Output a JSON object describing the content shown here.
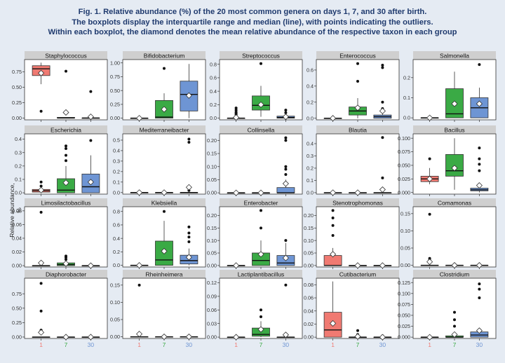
{
  "caption": {
    "line1": "Fig. 1. Relative abundance (%) of the 20 most common genera on days 1, 7, and 30 after birth.",
    "line2": "The boxplots display the interquartile range and median (line), with points indicating the outliers.",
    "line3": "Within each boxplot, the diamond denotes the mean relative abundance of the respective taxon in each group"
  },
  "colors": {
    "g1": "#f07a72",
    "g7": "#3aaa45",
    "g30": "#6e95d4",
    "strip": "#cfcfcf"
  },
  "chart_data": {
    "type": "boxplot",
    "ylabel": "Relative abundance, %",
    "groups": [
      "1",
      "7",
      "30"
    ],
    "panels": [
      {
        "title": "Staphylococcus",
        "ticks": [
          0.0,
          0.25,
          0.5,
          0.75
        ],
        "ylim": [
          -0.03,
          0.95
        ],
        "boxes": [
          {
            "q1": 0.69,
            "med": 0.8,
            "q3": 0.85,
            "lo": 0.55,
            "hi": 0.9,
            "mean": 0.73,
            "out": [
              0.11
            ]
          },
          {
            "q1": 0.0,
            "med": 0.0,
            "q3": 0.01,
            "lo": 0.0,
            "hi": 0.01,
            "mean": 0.09,
            "out": [
              0.76,
              0.09
            ]
          },
          {
            "q1": 0.0,
            "med": 0.0,
            "q3": 0.0,
            "lo": 0.0,
            "hi": 0.0,
            "mean": 0.02,
            "out": [
              0.43
            ]
          }
        ]
      },
      {
        "title": "Bifidobacterium",
        "ticks": [
          0.0,
          0.25,
          0.5,
          0.75,
          1.0
        ],
        "ylim": [
          -0.03,
          1.06
        ],
        "boxes": [
          {
            "q1": 0.0,
            "med": 0.0,
            "q3": 0.0,
            "lo": 0.0,
            "hi": 0.0,
            "mean": 0.0,
            "out": []
          },
          {
            "q1": 0.0,
            "med": 0.02,
            "q3": 0.32,
            "lo": 0.0,
            "hi": 0.45,
            "mean": 0.16,
            "out": [
              0.9
            ]
          },
          {
            "q1": 0.13,
            "med": 0.43,
            "q3": 0.67,
            "lo": 0.0,
            "hi": 0.98,
            "mean": 0.41,
            "out": []
          }
        ]
      },
      {
        "title": "Streptococcus",
        "ticks": [
          0.0,
          0.2,
          0.4,
          0.6,
          0.8
        ],
        "ylim": [
          -0.025,
          0.87
        ],
        "boxes": [
          {
            "q1": 0.0,
            "med": 0.0,
            "q3": 0.0,
            "lo": 0.0,
            "hi": 0.0,
            "mean": 0.01,
            "out": [
              0.15,
              0.12,
              0.09,
              0.07,
              0.05
            ]
          },
          {
            "q1": 0.12,
            "med": 0.19,
            "q3": 0.33,
            "lo": 0.02,
            "hi": 0.48,
            "mean": 0.2,
            "out": [
              0.81
            ]
          },
          {
            "q1": 0.0,
            "med": 0.01,
            "q3": 0.03,
            "lo": 0.0,
            "hi": 0.07,
            "mean": 0.02,
            "out": [
              0.12,
              0.08
            ]
          }
        ]
      },
      {
        "title": "Enterococcus",
        "ticks": [
          0.0,
          0.2,
          0.4,
          0.6
        ],
        "ylim": [
          -0.02,
          0.73
        ],
        "boxes": [
          {
            "q1": 0.0,
            "med": 0.0,
            "q3": 0.0,
            "lo": 0.0,
            "hi": 0.0,
            "mean": 0.0,
            "out": []
          },
          {
            "q1": 0.04,
            "med": 0.09,
            "q3": 0.14,
            "lo": 0.0,
            "hi": 0.25,
            "mean": 0.13,
            "out": [
              0.68,
              0.46
            ]
          },
          {
            "q1": 0.0,
            "med": 0.02,
            "q3": 0.04,
            "lo": 0.0,
            "hi": 0.08,
            "mean": 0.09,
            "out": [
              0.66,
              0.63,
              0.2,
              0.12
            ]
          }
        ]
      },
      {
        "title": "Salmonella",
        "ticks": [
          0.0,
          0.1,
          0.2
        ],
        "ylim": [
          -0.01,
          0.29
        ],
        "boxes": [
          {
            "q1": 0.0,
            "med": 0.0,
            "q3": 0.0,
            "lo": 0.0,
            "hi": 0.0,
            "mean": 0.0,
            "out": []
          },
          {
            "q1": 0.0,
            "med": 0.02,
            "q3": 0.145,
            "lo": 0.0,
            "hi": 0.23,
            "mean": 0.07,
            "out": []
          },
          {
            "q1": 0.0,
            "med": 0.05,
            "q3": 0.1,
            "lo": 0.0,
            "hi": 0.15,
            "mean": 0.07,
            "out": [
              0.265
            ]
          }
        ]
      },
      {
        "title": "Escherichia",
        "ticks": [
          0.0,
          0.1,
          0.2,
          0.3,
          0.4
        ],
        "ylim": [
          -0.01,
          0.44
        ],
        "boxes": [
          {
            "q1": 0.005,
            "med": 0.015,
            "q3": 0.025,
            "lo": 0.0,
            "hi": 0.04,
            "mean": 0.02,
            "out": [
              0.08,
              0.05
            ]
          },
          {
            "q1": 0.0,
            "med": 0.02,
            "q3": 0.105,
            "lo": 0.0,
            "hi": 0.2,
            "mean": 0.075,
            "out": [
              0.35,
              0.33,
              0.28,
              0.24
            ]
          },
          {
            "q1": 0.0,
            "med": 0.045,
            "q3": 0.14,
            "lo": 0.0,
            "hi": 0.28,
            "mean": 0.08,
            "out": [
              0.39
            ]
          }
        ]
      },
      {
        "title": "Mediterraneibacter",
        "ticks": [
          0.0,
          0.1,
          0.2,
          0.3,
          0.4,
          0.5
        ],
        "ylim": [
          -0.015,
          0.56
        ],
        "boxes": [
          {
            "q1": 0.0,
            "med": 0.0,
            "q3": 0.0,
            "lo": 0.0,
            "hi": 0.0,
            "mean": 0.0,
            "out": []
          },
          {
            "q1": 0.0,
            "med": 0.0,
            "q3": 0.0,
            "lo": 0.0,
            "hi": 0.0,
            "mean": 0.0,
            "out": []
          },
          {
            "q1": 0.0,
            "med": 0.0,
            "q3": 0.0,
            "lo": 0.0,
            "hi": 0.0,
            "mean": 0.05,
            "out": [
              0.51,
              0.48,
              0.02
            ]
          }
        ]
      },
      {
        "title": "Collinsella",
        "ticks": [
          0.0,
          0.05,
          0.1,
          0.15,
          0.2
        ],
        "ylim": [
          -0.005,
          0.225
        ],
        "boxes": [
          {
            "q1": 0.0,
            "med": 0.0,
            "q3": 0.0,
            "lo": 0.0,
            "hi": 0.0,
            "mean": 0.0,
            "out": []
          },
          {
            "q1": 0.0,
            "med": 0.0,
            "q3": 0.0,
            "lo": 0.0,
            "hi": 0.0,
            "mean": 0.0,
            "out": []
          },
          {
            "q1": 0.0,
            "med": 0.0,
            "q3": 0.02,
            "lo": 0.0,
            "hi": 0.05,
            "mean": 0.035,
            "out": [
              0.21,
              0.2,
              0.1,
              0.09,
              0.07
            ]
          }
        ]
      },
      {
        "title": "Blautia",
        "ticks": [
          0.0,
          0.1,
          0.2,
          0.3,
          0.4
        ],
        "ylim": [
          -0.012,
          0.48
        ],
        "boxes": [
          {
            "q1": 0.0,
            "med": 0.0,
            "q3": 0.0,
            "lo": 0.0,
            "hi": 0.0,
            "mean": 0.0,
            "out": []
          },
          {
            "q1": 0.0,
            "med": 0.0,
            "q3": 0.0,
            "lo": 0.0,
            "hi": 0.0,
            "mean": 0.0,
            "out": []
          },
          {
            "q1": 0.0,
            "med": 0.0,
            "q3": 0.0,
            "lo": 0.0,
            "hi": 0.0,
            "mean": 0.025,
            "out": [
              0.45,
              0.12
            ]
          }
        ]
      },
      {
        "title": "Bacillus",
        "ticks": [
          0.0,
          0.025,
          0.05,
          0.075,
          0.1
        ],
        "ylim": [
          -0.003,
          0.108
        ],
        "boxes": [
          {
            "q1": 0.02,
            "med": 0.025,
            "q3": 0.03,
            "lo": 0.015,
            "hi": 0.045,
            "mean": 0.025,
            "out": [
              0.062
            ]
          },
          {
            "q1": 0.03,
            "med": 0.04,
            "q3": 0.07,
            "lo": 0.005,
            "hi": 0.1,
            "mean": 0.045,
            "out": []
          },
          {
            "q1": 0.003,
            "med": 0.005,
            "q3": 0.008,
            "lo": 0.0,
            "hi": 0.012,
            "mean": 0.013,
            "out": [
              0.082,
              0.062,
              0.052,
              0.04
            ]
          }
        ]
      },
      {
        "title": "Limosilactobacillus",
        "ticks": [
          0.0,
          0.02,
          0.04,
          0.06,
          0.08
        ],
        "ylim": [
          -0.002,
          0.086
        ],
        "boxes": [
          {
            "q1": 0.0,
            "med": 0.0,
            "q3": 0.0,
            "lo": 0.0,
            "hi": 0.0,
            "mean": 0.004,
            "out": [
              0.078
            ]
          },
          {
            "q1": 0.0,
            "med": 0.0015,
            "q3": 0.004,
            "lo": 0.0,
            "hi": 0.006,
            "mean": 0.003,
            "out": [
              0.014,
              0.012,
              0.009
            ]
          },
          {
            "q1": 0.0,
            "med": 0.0,
            "q3": 0.0,
            "lo": 0.0,
            "hi": 0.0,
            "mean": 0.0,
            "out": []
          }
        ]
      },
      {
        "title": "Klebsiella",
        "ticks": [
          0.0,
          0.2,
          0.4,
          0.6,
          0.8
        ],
        "ylim": [
          -0.025,
          0.87
        ],
        "boxes": [
          {
            "q1": 0.0,
            "med": 0.0,
            "q3": 0.0,
            "lo": 0.0,
            "hi": 0.0,
            "mean": 0.0,
            "out": []
          },
          {
            "q1": 0.0,
            "med": 0.08,
            "q3": 0.36,
            "lo": 0.0,
            "hi": 0.66,
            "mean": 0.21,
            "out": [
              0.8
            ]
          },
          {
            "q1": 0.02,
            "med": 0.07,
            "q3": 0.15,
            "lo": 0.0,
            "hi": 0.25,
            "mean": 0.12,
            "out": [
              0.57,
              0.48,
              0.42,
              0.35
            ]
          }
        ]
      },
      {
        "title": "Enterobacter",
        "ticks": [
          0.0,
          0.05,
          0.1,
          0.15,
          0.2
        ],
        "ylim": [
          -0.006,
          0.235
        ],
        "boxes": [
          {
            "q1": 0.0,
            "med": 0.0,
            "q3": 0.0,
            "lo": 0.0,
            "hi": 0.0,
            "mean": 0.0,
            "out": []
          },
          {
            "q1": 0.0,
            "med": 0.02,
            "q3": 0.05,
            "lo": 0.0,
            "hi": 0.1,
            "mean": 0.045,
            "out": [
              0.22,
              0.15
            ]
          },
          {
            "q1": 0.0,
            "med": 0.01,
            "q3": 0.04,
            "lo": 0.0,
            "hi": 0.09,
            "mean": 0.03,
            "out": [
              0.1
            ]
          }
        ]
      },
      {
        "title": "Stenotrophomonas",
        "ticks": [
          0.0,
          0.05,
          0.1,
          0.15,
          0.2
        ],
        "ylim": [
          -0.006,
          0.235
        ],
        "boxes": [
          {
            "q1": 0.0,
            "med": 0.0,
            "q3": 0.04,
            "lo": 0.0,
            "hi": 0.07,
            "mean": 0.045,
            "out": [
              0.22,
              0.19,
              0.16,
              0.12
            ]
          },
          {
            "q1": 0.0,
            "med": 0.0,
            "q3": 0.0,
            "lo": 0.0,
            "hi": 0.0,
            "mean": 0.0,
            "out": []
          },
          {
            "q1": 0.0,
            "med": 0.0,
            "q3": 0.0,
            "lo": 0.0,
            "hi": 0.0,
            "mean": 0.0,
            "out": []
          }
        ]
      },
      {
        "title": "Comamonas",
        "ticks": [
          0.0,
          0.05,
          0.1,
          0.15
        ],
        "ylim": [
          -0.005,
          0.17
        ],
        "boxes": [
          {
            "q1": 0.0,
            "med": 0.0,
            "q3": 0.0,
            "lo": 0.0,
            "hi": 0.0,
            "mean": 0.01,
            "out": [
              0.148,
              0.02,
              0.015
            ]
          },
          {
            "q1": 0.0,
            "med": 0.0,
            "q3": 0.0,
            "lo": 0.0,
            "hi": 0.0,
            "mean": 0.0,
            "out": []
          },
          {
            "q1": 0.0,
            "med": 0.0,
            "q3": 0.0,
            "lo": 0.0,
            "hi": 0.0,
            "mean": 0.0,
            "out": []
          }
        ]
      },
      {
        "title": "Diaphorobacter",
        "ticks": [
          0.0,
          0.25,
          0.5,
          0.75
        ],
        "ylim": [
          -0.025,
          1.02
        ],
        "boxes": [
          {
            "q1": 0.0,
            "med": 0.0,
            "q3": 0.0,
            "lo": 0.0,
            "hi": 0.0,
            "mean": 0.08,
            "out": [
              0.93,
              0.45,
              0.12,
              0.1
            ]
          },
          {
            "q1": 0.0,
            "med": 0.0,
            "q3": 0.0,
            "lo": 0.0,
            "hi": 0.0,
            "mean": 0.0,
            "out": []
          },
          {
            "q1": 0.0,
            "med": 0.0,
            "q3": 0.0,
            "lo": 0.0,
            "hi": 0.0,
            "mean": 0.0,
            "out": []
          }
        ]
      },
      {
        "title": "Rheinheimera",
        "ticks": [
          0.0,
          0.05,
          0.1,
          0.15
        ],
        "ylim": [
          -0.005,
          0.17
        ],
        "boxes": [
          {
            "q1": 0.0,
            "med": 0.0,
            "q3": 0.0,
            "lo": 0.0,
            "hi": 0.0,
            "mean": 0.008,
            "out": [
              0.15
            ]
          },
          {
            "q1": 0.0,
            "med": 0.0,
            "q3": 0.0,
            "lo": 0.0,
            "hi": 0.0,
            "mean": 0.0,
            "out": []
          },
          {
            "q1": 0.0,
            "med": 0.0,
            "q3": 0.0,
            "lo": 0.0,
            "hi": 0.0,
            "mean": 0.0,
            "out": []
          }
        ]
      },
      {
        "title": "Lactiplantibacillus",
        "ticks": [
          0.0,
          0.03,
          0.06,
          0.09,
          0.12
        ],
        "ylim": [
          -0.003,
          0.13
        ],
        "boxes": [
          {
            "q1": 0.0,
            "med": 0.0,
            "q3": 0.0,
            "lo": 0.0,
            "hi": 0.0,
            "mean": 0.0,
            "out": []
          },
          {
            "q1": 0.002,
            "med": 0.006,
            "q3": 0.02,
            "lo": 0.0,
            "hi": 0.035,
            "mean": 0.017,
            "out": [
              0.06,
              0.045
            ]
          },
          {
            "q1": 0.0,
            "med": 0.0,
            "q3": 0.0,
            "lo": 0.0,
            "hi": 0.0,
            "mean": 0.005,
            "out": [
              0.115
            ]
          }
        ]
      },
      {
        "title": "Cutibacterium",
        "ticks": [
          0.0,
          0.02,
          0.04,
          0.06,
          0.08
        ],
        "ylim": [
          -0.002,
          0.09
        ],
        "boxes": [
          {
            "q1": 0.0,
            "med": 0.011,
            "q3": 0.038,
            "lo": 0.0,
            "hi": 0.085,
            "mean": 0.021,
            "out": []
          },
          {
            "q1": 0.0,
            "med": 0.0,
            "q3": 0.0,
            "lo": 0.0,
            "hi": 0.0,
            "mean": 0.001,
            "out": [
              0.01,
              0.004
            ]
          },
          {
            "q1": 0.0,
            "med": 0.0,
            "q3": 0.0,
            "lo": 0.0,
            "hi": 0.0,
            "mean": 0.0,
            "out": [
              0.002
            ]
          }
        ]
      },
      {
        "title": "Clostridium",
        "ticks": [
          0.0,
          0.025,
          0.05,
          0.075,
          0.1,
          0.125
        ],
        "ylim": [
          -0.003,
          0.135
        ],
        "boxes": [
          {
            "q1": 0.0,
            "med": 0.0,
            "q3": 0.0,
            "lo": 0.0,
            "hi": 0.0,
            "mean": 0.0,
            "out": []
          },
          {
            "q1": 0.0,
            "med": 0.0,
            "q3": 0.003,
            "lo": 0.0,
            "hi": 0.005,
            "mean": 0.006,
            "out": [
              0.057,
              0.04,
              0.025
            ]
          },
          {
            "q1": 0.0,
            "med": 0.005,
            "q3": 0.012,
            "lo": 0.0,
            "hi": 0.02,
            "mean": 0.015,
            "out": [
              0.122,
              0.11,
              0.09
            ]
          }
        ]
      }
    ]
  }
}
